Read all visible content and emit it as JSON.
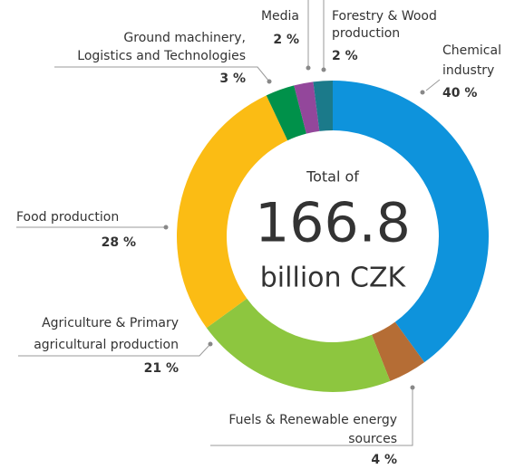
{
  "chart_data": {
    "type": "donut",
    "center_top": "Total of",
    "total": 166.8,
    "center_bottom": "billion CZK",
    "categories": [
      [
        "Chemical",
        "industry"
      ],
      [
        "Fuels & Renewable energy",
        "sources"
      ],
      [
        "Agriculture & Primary",
        "agricultural production"
      ],
      [
        "Food production"
      ],
      [
        "Ground machinery,",
        "Logistics and Technologies"
      ],
      [
        "Media"
      ],
      [
        "Forestry & Wood",
        "production"
      ]
    ],
    "values": [
      40,
      4,
      21,
      28,
      3,
      2,
      2
    ],
    "value_labels": [
      "40 %",
      "4 %",
      "21 %",
      "28 %",
      "3 %",
      "2 %",
      "2 %"
    ],
    "colors": [
      "#0e93dc",
      "#b56d35",
      "#8dc63f",
      "#fbbc14",
      "#00914a",
      "#93479b",
      "#1b7a8a"
    ]
  }
}
